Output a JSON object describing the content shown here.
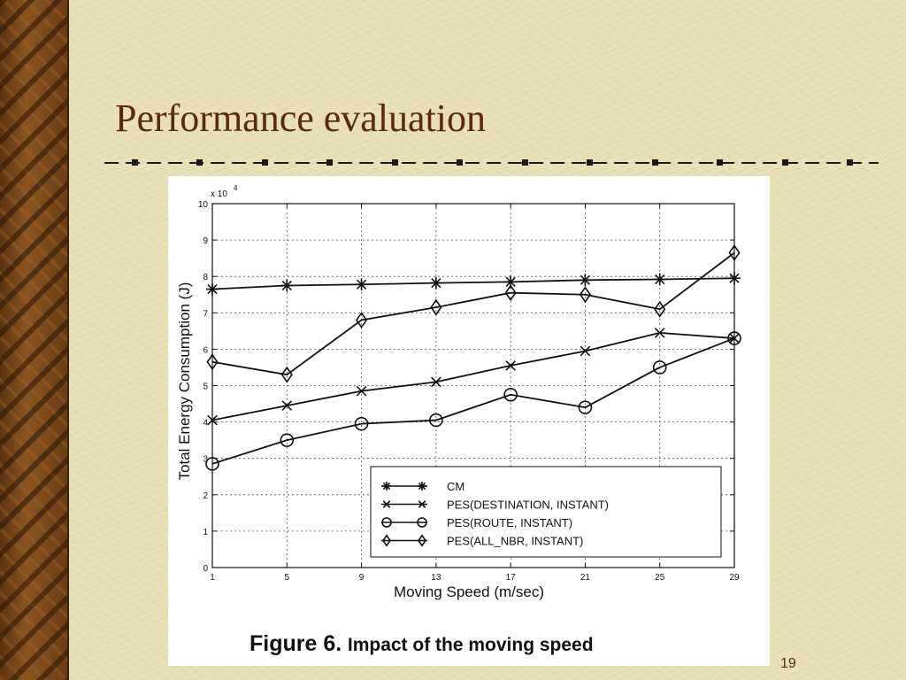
{
  "slide": {
    "title": "Performance evaluation",
    "page_number": "19",
    "caption_prefix": "Figure 6.",
    "caption_text": "Impact of the moving speed",
    "colors": {
      "background": "#e8dfb6",
      "title": "#5a2a0a",
      "wood": "#7a4a1a",
      "chart_ink": "#111111"
    }
  },
  "chart_data": {
    "type": "line",
    "title": "",
    "xlabel": "Moving Speed (m/sec)",
    "ylabel": "Total Energy Consumption (J)",
    "y_multiplier_label": "x 10",
    "y_multiplier_exponent": "4",
    "x": [
      1,
      5,
      9,
      13,
      17,
      21,
      25,
      29
    ],
    "x_ticks": [
      "1",
      "5",
      "9",
      "13",
      "17",
      "21",
      "25",
      "29"
    ],
    "y_ticks": [
      "0",
      "1",
      "2",
      "3",
      "4",
      "5",
      "6",
      "7",
      "8",
      "9",
      "10"
    ],
    "xlim": [
      1,
      29
    ],
    "ylim": [
      0,
      10
    ],
    "grid": true,
    "legend_position": "bottom-right",
    "series": [
      {
        "name": "CM",
        "marker": "asterisk",
        "values": [
          7.65,
          7.75,
          7.78,
          7.82,
          7.85,
          7.9,
          7.92,
          7.95
        ]
      },
      {
        "name": "PES(DESTINATION, INSTANT)",
        "marker": "x",
        "values": [
          4.05,
          4.45,
          4.85,
          5.1,
          5.55,
          5.95,
          6.45,
          6.3
        ]
      },
      {
        "name": "PES(ROUTE, INSTANT)",
        "marker": "circle",
        "values": [
          2.85,
          3.5,
          3.95,
          4.05,
          4.75,
          4.4,
          5.5,
          6.3
        ]
      },
      {
        "name": "PES(ALL_NBR, INSTANT)",
        "marker": "diamond",
        "values": [
          5.65,
          5.3,
          6.8,
          7.15,
          7.55,
          7.5,
          7.1,
          8.65
        ]
      }
    ]
  }
}
